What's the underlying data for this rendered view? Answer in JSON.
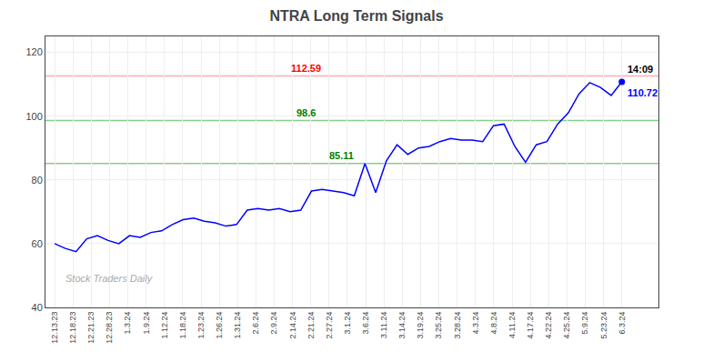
{
  "chart_data": {
    "type": "line",
    "title": "NTRA Long Term Signals",
    "x": [
      0,
      0.5849,
      1.1698,
      1.7547,
      2.3396,
      2.9245,
      3.5094,
      4.0943,
      4.6792,
      5.2642,
      5.8491,
      6.434,
      7.0189,
      7.6038,
      8.1887,
      8.7736,
      9.3585,
      9.9434,
      10.5283,
      11.1132,
      11.6981,
      12.283,
      12.8679,
      13.4528,
      14.0377,
      14.6226,
      15.2075,
      15.7925,
      16.3774,
      16.9623,
      17.5472,
      18.1321,
      18.717,
      19.3019,
      19.8868,
      20.4717,
      21.0566,
      21.6415,
      22.2264,
      22.8113,
      23.3962,
      23.9811,
      24.566,
      25.1509,
      25.7358,
      26.3208,
      26.9057,
      27.4906,
      28.0755,
      28.6604,
      29.2453,
      29.8302,
      30.4151,
      31
    ],
    "values": [
      60.0,
      58.5,
      57.5,
      61.5,
      62.5,
      61.0,
      60.0,
      62.5,
      62.0,
      63.5,
      64.0,
      66.0,
      67.5,
      68.0,
      67.0,
      66.5,
      65.5,
      66.0,
      70.5,
      71.0,
      70.5,
      71.0,
      70.0,
      70.5,
      76.5,
      77.0,
      76.5,
      76.0,
      75.0,
      85.11,
      76.0,
      86.0,
      91.0,
      88.0,
      90.0,
      90.5,
      92.0,
      93.0,
      92.5,
      92.5,
      92.0,
      97.0,
      97.5,
      90.5,
      85.5,
      91.0,
      92.0,
      97.5,
      101.0,
      107.0,
      110.5,
      109.0,
      106.5,
      110.72
    ],
    "color": "blue",
    "xlim": [
      -0.5,
      33
    ],
    "xticks": [
      {
        "value": 0,
        "label": "12.13.23"
      },
      {
        "value": 1,
        "label": "12.18.23"
      },
      {
        "value": 2,
        "label": "12.21.23"
      },
      {
        "value": 3,
        "label": "12.28.23"
      },
      {
        "value": 4,
        "label": "1.3.24"
      },
      {
        "value": 5,
        "label": "1.9.24"
      },
      {
        "value": 6,
        "label": "1.12.24"
      },
      {
        "value": 7,
        "label": "1.18.24"
      },
      {
        "value": 8,
        "label": "1.23.24"
      },
      {
        "value": 9,
        "label": "1.26.24"
      },
      {
        "value": 10,
        "label": "1.31.24"
      },
      {
        "value": 11,
        "label": "2.6.24"
      },
      {
        "value": 12,
        "label": "2.9.24"
      },
      {
        "value": 13,
        "label": "2.14.24"
      },
      {
        "value": 14,
        "label": "2.21.24"
      },
      {
        "value": 15,
        "label": "2.27.24"
      },
      {
        "value": 16,
        "label": "3.1.24"
      },
      {
        "value": 17,
        "label": "3.6.24"
      },
      {
        "value": 18,
        "label": "3.11.24"
      },
      {
        "value": 19,
        "label": "3.14.24"
      },
      {
        "value": 20,
        "label": "3.19.24"
      },
      {
        "value": 21,
        "label": "3.25.24"
      },
      {
        "value": 22,
        "label": "3.28.24"
      },
      {
        "value": 23,
        "label": "4.3.24"
      },
      {
        "value": 24,
        "label": "4.8.24"
      },
      {
        "value": 25,
        "label": "4.11.24"
      },
      {
        "value": 26,
        "label": "4.17.24"
      },
      {
        "value": 27,
        "label": "4.22.24"
      },
      {
        "value": 28,
        "label": "4.25.24"
      },
      {
        "value": 29,
        "label": "5.9.24"
      },
      {
        "value": 30,
        "label": "5.23.24"
      },
      {
        "value": 31,
        "label": "6.3.24"
      }
    ],
    "ylim": [
      40,
      125
    ],
    "yticks": [
      40,
      60,
      80,
      100,
      120
    ],
    "grid": true,
    "hlines": [
      {
        "value": 112.59,
        "color": "#ffaaaa",
        "label": "112.59",
        "label_color": "red"
      },
      {
        "value": 98.6,
        "color": "#88cc88",
        "label": "98.6",
        "label_color": "green"
      },
      {
        "value": 85.11,
        "color": "#88cc88",
        "label": "85.11",
        "label_color": "green"
      }
    ],
    "annotations": [
      {
        "text": "14:09",
        "color": "black"
      },
      {
        "text": "110.72",
        "color": "blue"
      }
    ],
    "watermark": "Stock Traders Daily",
    "watermark_color": "#aaaaaa"
  }
}
